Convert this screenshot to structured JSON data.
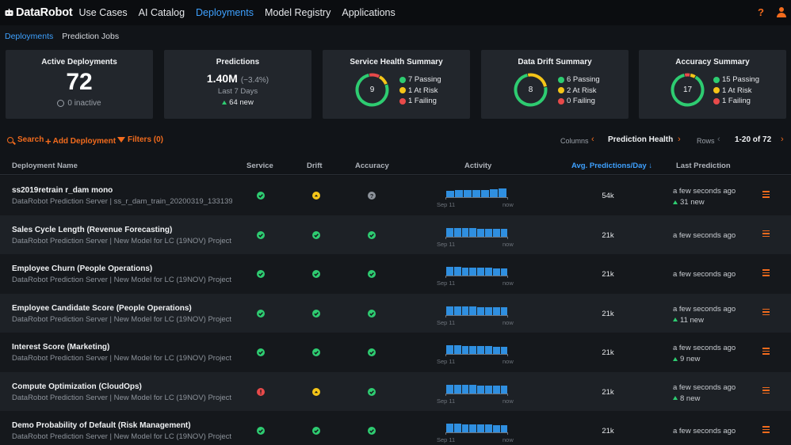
{
  "topnav": {
    "logo_text": "DataRobot",
    "items": [
      {
        "label": "Use Cases"
      },
      {
        "label": "AI Catalog"
      },
      {
        "label": "Deployments",
        "active": true
      },
      {
        "label": "Model Registry"
      },
      {
        "label": "Applications"
      }
    ],
    "help_icon": "help-icon",
    "user_icon": "user-icon",
    "accent_color": "#f26b1d",
    "active_color": "#3ea1ff"
  },
  "subnav": {
    "items": [
      {
        "label": "Deployments",
        "active": true
      },
      {
        "label": "Prediction Jobs"
      }
    ]
  },
  "summary": {
    "active": {
      "title": "Active Deployments",
      "count": "72",
      "inactive": "0 inactive"
    },
    "predictions": {
      "title": "Predictions",
      "value": "1.40M",
      "change": "(−3.4%)",
      "period": "Last 7 Days",
      "new": "64 new"
    },
    "service": {
      "title": "Service Health Summary",
      "total": "9",
      "passing": "7 Passing",
      "at_risk": "1 At Risk",
      "failing": "1 Failing",
      "counts": {
        "passing": 7,
        "at_risk": 1,
        "failing": 1
      }
    },
    "drift": {
      "title": "Data Drift Summary",
      "total": "8",
      "passing": "6 Passing",
      "at_risk": "2 At Risk",
      "failing": "0 Failing",
      "counts": {
        "passing": 6,
        "at_risk": 2,
        "failing": 0
      }
    },
    "accuracy": {
      "title": "Accuracy Summary",
      "total": "17",
      "passing": "15 Passing",
      "at_risk": "1 At Risk",
      "failing": "1 Failing",
      "counts": {
        "passing": 15,
        "at_risk": 1,
        "failing": 1
      }
    }
  },
  "toolbar": {
    "search": "Search",
    "add": "Add Deployment",
    "filters": "Filters (0)",
    "columns_label": "Columns",
    "columns_value": "Prediction Health",
    "rows_label": "Rows",
    "rows_value": "1-20 of 72"
  },
  "table": {
    "headers": {
      "name": "Deployment Name",
      "service": "Service",
      "drift": "Drift",
      "accuracy": "Accuracy",
      "activity": "Activity",
      "avg": "Avg. Predictions/Day ↓",
      "last": "Last Prediction"
    },
    "activity_start": "Sep 11",
    "activity_end": "now",
    "rows": [
      {
        "name": "ss2019retrain r_dam mono",
        "sub": "DataRobot Prediction Server | ss_r_dam_train_20200319_133139…",
        "service": "pass",
        "drift": "risk",
        "accuracy": "unknown",
        "activity": [
          0.75,
          0.8,
          0.8,
          0.85,
          0.85,
          0.9,
          1.0
        ],
        "avg": "54k",
        "last": "a few seconds ago",
        "new": "31 new"
      },
      {
        "name": "Sales Cycle Length (Revenue Forecasting)",
        "sub": "DataRobot Prediction Server | New Model for LC (19NOV) Project",
        "service": "pass",
        "drift": "pass",
        "accuracy": "pass",
        "activity": [
          1.0,
          1.0,
          0.95,
          0.95,
          0.9,
          0.9,
          0.85,
          0.85
        ],
        "avg": "21k",
        "last": "a few seconds ago",
        "new": ""
      },
      {
        "name": "Employee Churn (People Operations)",
        "sub": "DataRobot Prediction Server | New Model for LC (19NOV) Project",
        "service": "pass",
        "drift": "pass",
        "accuracy": "pass",
        "activity": [
          1.0,
          1.0,
          0.95,
          0.95,
          0.9,
          0.9,
          0.85,
          0.85
        ],
        "avg": "21k",
        "last": "a few seconds ago",
        "new": ""
      },
      {
        "name": "Employee Candidate Score (People Operations)",
        "sub": "DataRobot Prediction Server | New Model for LC (19NOV) Project",
        "service": "pass",
        "drift": "pass",
        "accuracy": "pass",
        "activity": [
          1.0,
          1.0,
          0.95,
          0.95,
          0.9,
          0.9,
          0.85,
          0.85
        ],
        "avg": "21k",
        "last": "a few seconds ago",
        "new": "11 new"
      },
      {
        "name": "Interest Score (Marketing)",
        "sub": "DataRobot Prediction Server | New Model for LC (19NOV) Project",
        "service": "pass",
        "drift": "pass",
        "accuracy": "pass",
        "activity": [
          1.0,
          1.0,
          0.95,
          0.95,
          0.9,
          0.9,
          0.85,
          0.85
        ],
        "avg": "21k",
        "last": "a few seconds ago",
        "new": "9 new"
      },
      {
        "name": "Compute Optimization (CloudOps)",
        "sub": "DataRobot Prediction Server | New Model for LC (19NOV) Project",
        "service": "fail",
        "drift": "risk",
        "accuracy": "pass",
        "activity": [
          1.0,
          1.0,
          0.95,
          0.95,
          0.9,
          0.9,
          0.85,
          0.85
        ],
        "avg": "21k",
        "last": "a few seconds ago",
        "new": "8 new"
      },
      {
        "name": "Demo Probability of Default (Risk Management)",
        "sub": "DataRobot Prediction Server | New Model for LC (19NOV) Project",
        "service": "pass",
        "drift": "pass",
        "accuracy": "pass",
        "activity": [
          1.0,
          1.0,
          0.95,
          0.95,
          0.9,
          0.9,
          0.85,
          0.85
        ],
        "avg": "21k",
        "last": "a few seconds ago",
        "new": ""
      }
    ]
  },
  "colors": {
    "pass": "#2ecc71",
    "risk": "#f5c518",
    "fail": "#e84a4a",
    "unknown": "#8d939b",
    "bar": "#2f8fe0"
  }
}
